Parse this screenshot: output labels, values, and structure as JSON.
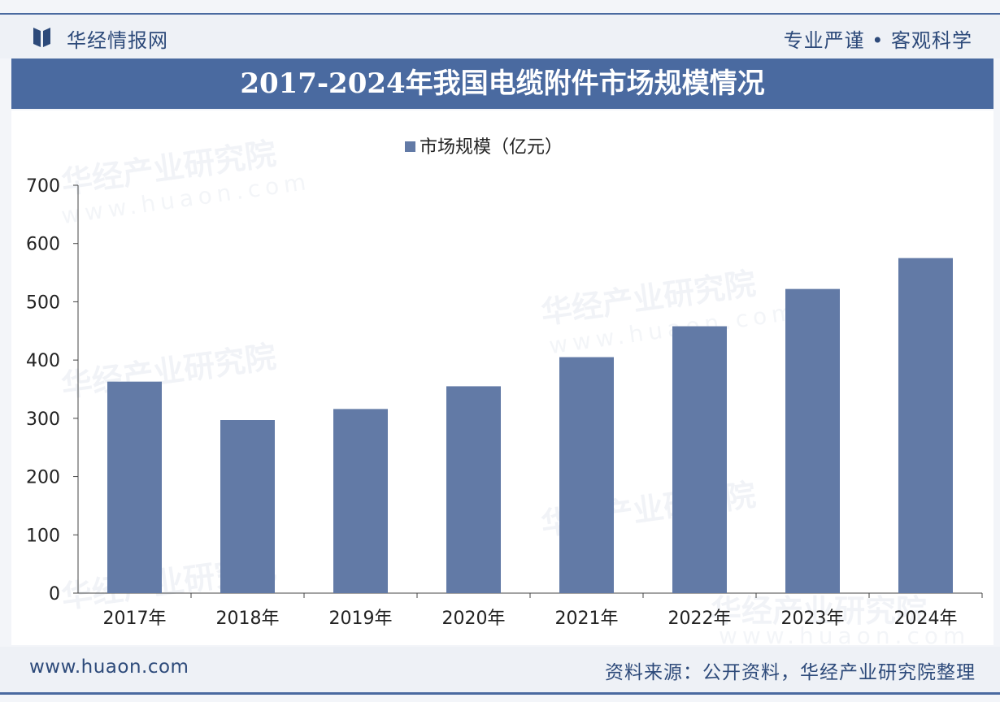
{
  "header": {
    "logo_name": "华经情报网",
    "slogan": "专业严谨 • 客观科学"
  },
  "title": "2017-2024年我国电缆附件市场规模情况",
  "watermark": {
    "name": "华经产业研究院",
    "url": "www.huaon.com"
  },
  "chart_data": {
    "type": "bar",
    "title": "2017-2024年我国电缆附件市场规模情况",
    "categories": [
      "2017年",
      "2018年",
      "2019年",
      "2020年",
      "2021年",
      "2022年",
      "2023年",
      "2024年"
    ],
    "series": [
      {
        "name": "市场规模（亿元）",
        "values": [
          363,
          297,
          316,
          355,
          405,
          458,
          522,
          575
        ]
      }
    ],
    "ylim": [
      0,
      700
    ],
    "yticks": [
      0,
      100,
      200,
      300,
      400,
      500,
      600,
      700
    ],
    "xlabel": "",
    "ylabel": "",
    "legend_position": "top-center",
    "grid": false
  },
  "footer": {
    "url": "www.huaon.com",
    "source": "资料来源：公开资料，华经产业研究院整理"
  },
  "colors": {
    "bar": "#627aa6",
    "brand": "#4a6aa0",
    "text_dark": "#2d4a7a"
  }
}
